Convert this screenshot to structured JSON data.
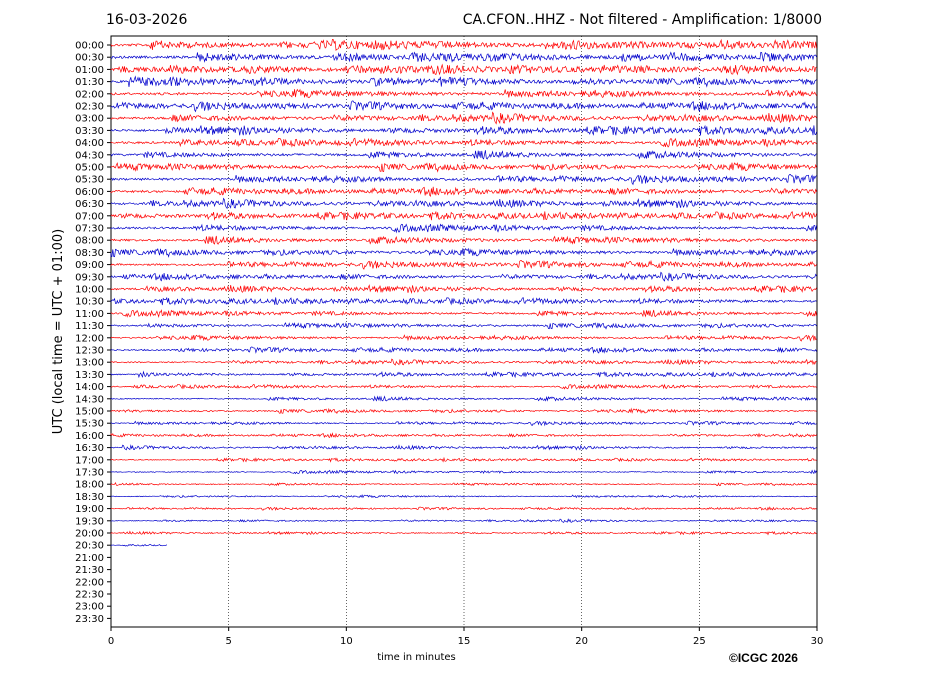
{
  "header": {
    "date": "16-03-2026",
    "title": "CA.CFON..HHZ - Not filtered - Amplification: 1/8000"
  },
  "footer": {
    "copyright": "©ICGC 2026"
  },
  "chart_data": {
    "type": "line",
    "title": "CA.CFON..HHZ - Not filtered - Amplification: 1/8000",
    "xlabel": "time in minutes",
    "ylabel": "UTC (local time = UTC + 01:00)",
    "xlim": [
      0,
      30
    ],
    "xticks": [
      0,
      5,
      10,
      15,
      20,
      25,
      30
    ],
    "grid": "vertical dotted lines at 5-minute intervals",
    "row_labels": [
      "00:00",
      "00:30",
      "01:00",
      "01:30",
      "02:00",
      "02:30",
      "03:00",
      "03:30",
      "04:00",
      "04:30",
      "05:00",
      "05:30",
      "06:00",
      "06:30",
      "07:00",
      "07:30",
      "08:00",
      "08:30",
      "09:00",
      "09:30",
      "10:00",
      "10:30",
      "11:00",
      "11:30",
      "12:00",
      "12:30",
      "13:00",
      "13:30",
      "14:00",
      "14:30",
      "15:00",
      "15:30",
      "16:00",
      "16:30",
      "17:00",
      "17:30",
      "18:00",
      "18:30",
      "19:00",
      "19:30",
      "20:00",
      "20:30",
      "21:00",
      "21:30",
      "22:00",
      "22:30",
      "23:00",
      "23:30"
    ],
    "trace_colors": [
      "#ff0000",
      "#0000cc"
    ],
    "trace_end_minutes": [
      30,
      30,
      30,
      30,
      30,
      30,
      30,
      30,
      30,
      30,
      30,
      30,
      30,
      30,
      30,
      30,
      30,
      30,
      30,
      30,
      30,
      30,
      30,
      30,
      30,
      30,
      30,
      30,
      30,
      30,
      30,
      30,
      30,
      30,
      30,
      30,
      30,
      30,
      30,
      30,
      30,
      2.4,
      0,
      0,
      0,
      0,
      0,
      0
    ],
    "amplitude_level": [
      0.9,
      0.9,
      0.85,
      0.85,
      0.85,
      0.85,
      0.85,
      0.85,
      0.8,
      0.8,
      0.8,
      0.8,
      0.8,
      0.75,
      0.75,
      0.75,
      0.75,
      0.75,
      0.7,
      0.65,
      0.65,
      0.65,
      0.6,
      0.55,
      0.5,
      0.5,
      0.45,
      0.45,
      0.4,
      0.4,
      0.4,
      0.35,
      0.35,
      0.35,
      0.3,
      0.3,
      0.25,
      0.25,
      0.25,
      0.25,
      0.25,
      0.2,
      0,
      0,
      0,
      0,
      0,
      0
    ]
  }
}
